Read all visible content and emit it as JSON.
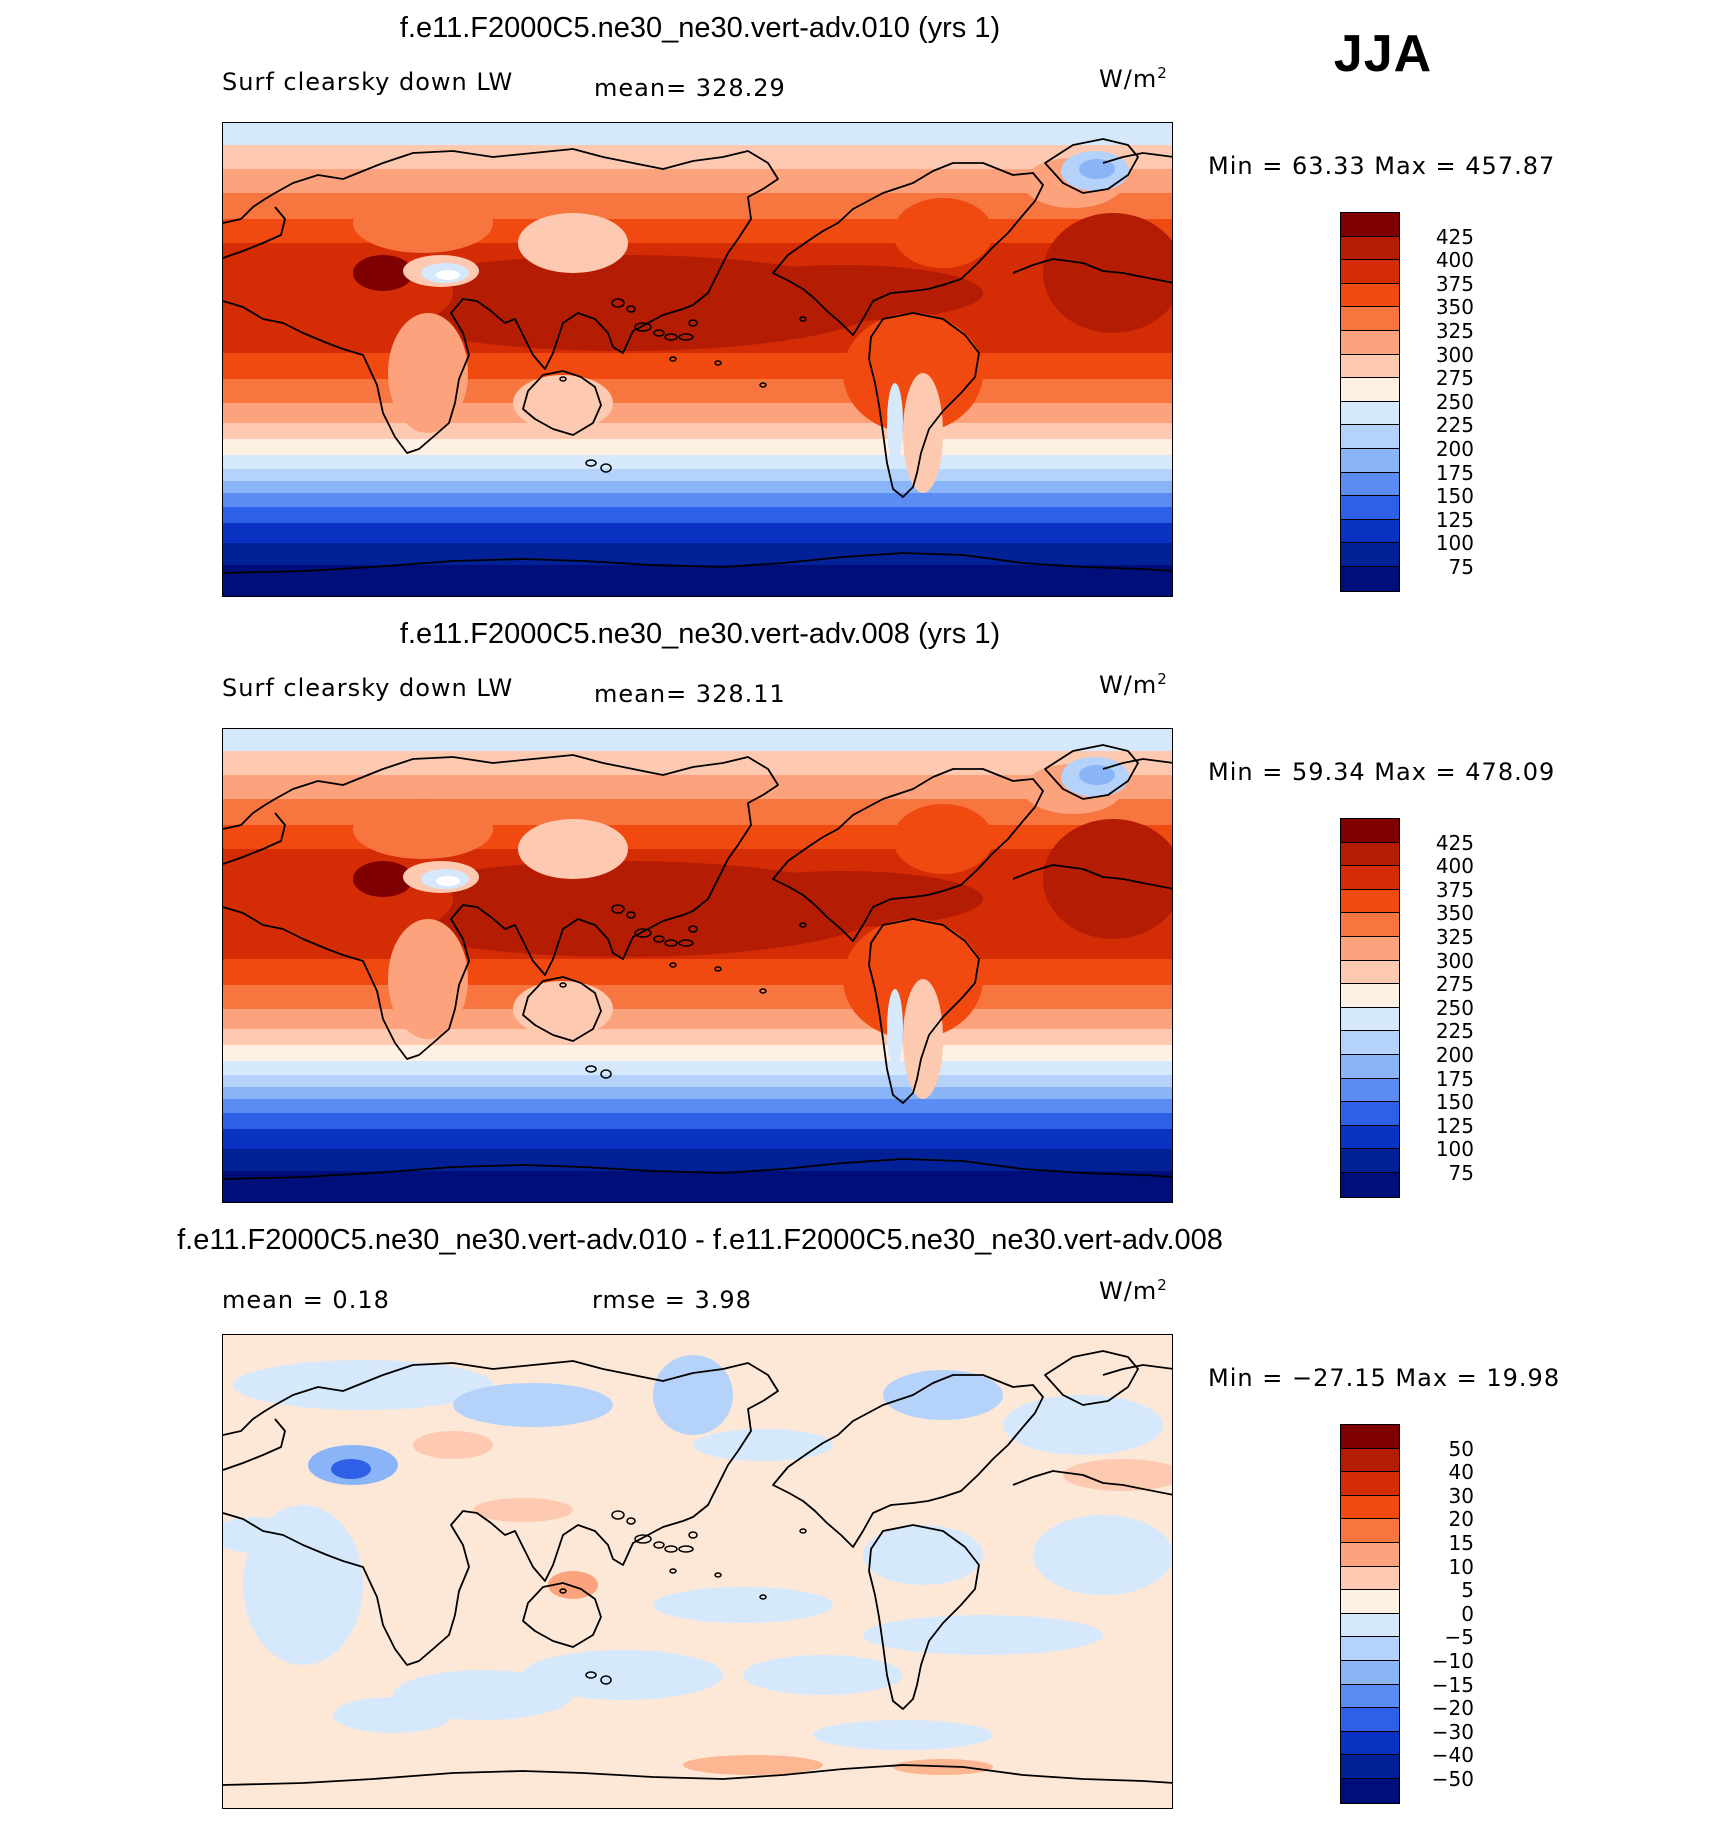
{
  "season": "JJA",
  "panels": [
    {
      "id": "p1",
      "title": "f.e11.F2000C5.ne30_ne30.vert-adv.010 (yrs 1)",
      "variable": "Surf clearsky down LW",
      "stat_left": "",
      "stat_mid": "mean= 328.29",
      "unit": "W/m",
      "unit_exp": "2",
      "minmax": "Min =   63.33 Max = 457.87",
      "scale": "abs"
    },
    {
      "id": "p2",
      "title": "f.e11.F2000C5.ne30_ne30.vert-adv.008 (yrs 1)",
      "variable": "Surf clearsky down LW",
      "stat_left": "",
      "stat_mid": "mean= 328.11",
      "unit": "W/m",
      "unit_exp": "2",
      "minmax": "Min =   59.34 Max = 478.09",
      "scale": "abs"
    },
    {
      "id": "p3",
      "title": "f.e11.F2000C5.ne30_ne30.vert-adv.010 - f.e11.F2000C5.ne30_ne30.vert-adv.008",
      "variable": "",
      "stat_left": "mean =    0.18",
      "stat_mid": "rmse =    3.98",
      "unit": "W/m",
      "unit_exp": "2",
      "minmax": "Min = −27.15 Max =   19.98",
      "scale": "diff"
    }
  ],
  "colorbars": {
    "abs": {
      "labels": [
        "425",
        "400",
        "375",
        "350",
        "325",
        "300",
        "275",
        "250",
        "225",
        "200",
        "175",
        "150",
        "125",
        "100",
        "75"
      ],
      "colors": [
        "#7f0000",
        "#b51c04",
        "#d42c05",
        "#f04a10",
        "#f7753f",
        "#fca27c",
        "#fdcab1",
        "#fff0e4",
        "#d6e8fb",
        "#b4d2fa",
        "#8ab4f8",
        "#5a8cf3",
        "#2d60e6",
        "#0a33c4",
        "#032196",
        "#000e7a"
      ]
    },
    "diff": {
      "labels": [
        "50",
        "40",
        "30",
        "20",
        "15",
        "10",
        "5",
        "0",
        "−5",
        "−10",
        "−15",
        "−20",
        "−30",
        "−40",
        "−50"
      ],
      "colors": [
        "#7f0000",
        "#b51c04",
        "#d42c05",
        "#f04a10",
        "#f7753f",
        "#fca27c",
        "#fdcab1",
        "#fff0e4",
        "#d6e8fb",
        "#b4d2fa",
        "#8ab4f8",
        "#5a8cf3",
        "#2d60e6",
        "#0a33c4",
        "#032196",
        "#000e7a"
      ]
    }
  }
}
